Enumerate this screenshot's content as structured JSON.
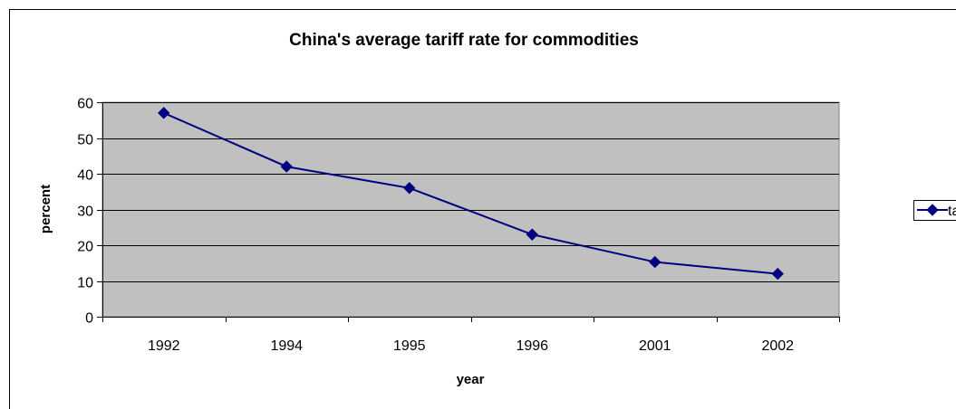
{
  "chart_data": {
    "type": "line",
    "title": "China's average tariff rate for commodities",
    "xlabel": "year",
    "ylabel": "percent",
    "categories": [
      "1992",
      "1994",
      "1995",
      "1996",
      "2001",
      "2002"
    ],
    "series": [
      {
        "name": "tariff",
        "values": [
          57,
          42,
          36,
          23,
          15.3,
          12
        ],
        "color": "#000080",
        "marker": "diamond"
      }
    ],
    "ylim": [
      0,
      60
    ],
    "yticks": [
      0,
      10,
      20,
      30,
      40,
      50,
      60
    ],
    "grid": true,
    "plot_background": "#c0c0c0",
    "legend": "right"
  }
}
